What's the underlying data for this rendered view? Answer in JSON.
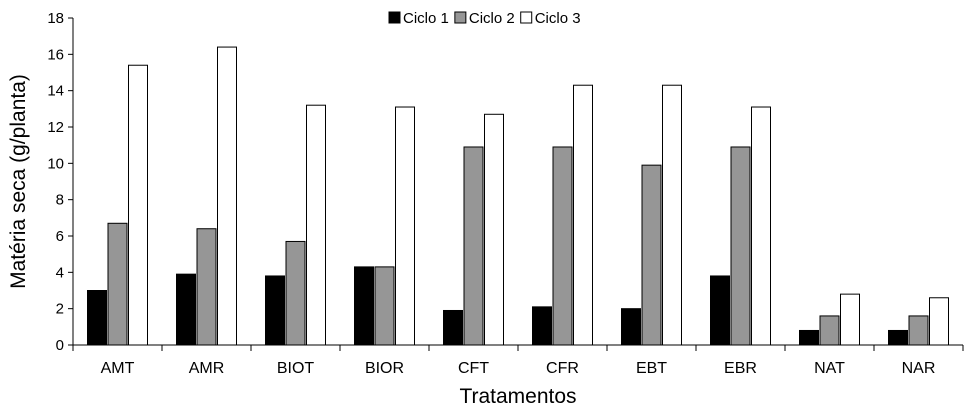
{
  "chart_data": {
    "type": "bar",
    "xlabel": "Tratamentos",
    "ylabel": "Matéria seca (g/planta)",
    "ylim": [
      0,
      18
    ],
    "yticks": [
      0,
      2,
      4,
      6,
      8,
      10,
      12,
      14,
      16,
      18
    ],
    "grid": false,
    "legend_position": "top-center",
    "categories": [
      "AMT",
      "AMR",
      "BIOT",
      "BIOR",
      "CFT",
      "CFR",
      "EBT",
      "EBR",
      "NAT",
      "NAR"
    ],
    "series": [
      {
        "name": "Ciclo 1",
        "color": "#000000",
        "values": [
          3.0,
          3.9,
          3.8,
          4.3,
          1.9,
          2.1,
          2.0,
          3.8,
          0.8,
          0.8
        ]
      },
      {
        "name": "Ciclo 2",
        "color": "#969696",
        "values": [
          6.7,
          6.4,
          5.7,
          4.3,
          10.9,
          10.9,
          9.9,
          10.9,
          1.6,
          1.6
        ]
      },
      {
        "name": "Ciclo 3",
        "color": "#ffffff",
        "values": [
          15.4,
          16.4,
          13.2,
          13.1,
          12.7,
          14.3,
          14.3,
          13.1,
          2.8,
          2.6
        ]
      }
    ]
  }
}
